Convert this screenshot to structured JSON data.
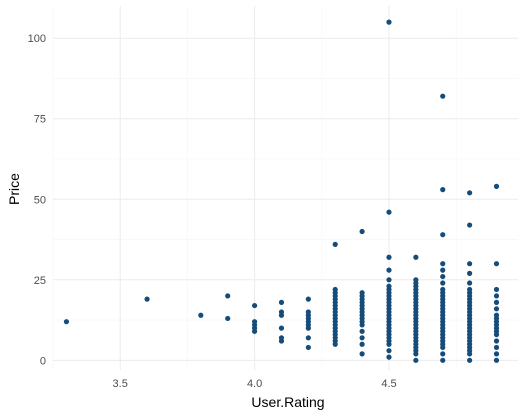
{
  "chart_data": {
    "type": "scatter",
    "title": "",
    "xlabel": "User.Rating",
    "ylabel": "Price",
    "xlim": [
      3.25,
      4.98
    ],
    "ylim": [
      -3,
      110
    ],
    "x_ticks": [
      3.5,
      4.0,
      4.5
    ],
    "x_tick_labels": [
      "3.5",
      "4.0",
      "4.5"
    ],
    "y_ticks": [
      0,
      25,
      50,
      75,
      100
    ],
    "y_tick_labels": [
      "0",
      "25",
      "50",
      "75",
      "100"
    ],
    "grid": true,
    "legend": "none",
    "point_color": "#154c79",
    "points": [
      [
        3.3,
        12
      ],
      [
        3.6,
        19
      ],
      [
        3.8,
        14
      ],
      [
        3.9,
        13
      ],
      [
        3.9,
        20
      ],
      [
        4.0,
        9
      ],
      [
        4.0,
        10
      ],
      [
        4.0,
        11
      ],
      [
        4.0,
        12
      ],
      [
        4.0,
        17
      ],
      [
        4.1,
        6
      ],
      [
        4.1,
        7
      ],
      [
        4.1,
        10
      ],
      [
        4.1,
        14
      ],
      [
        4.1,
        15
      ],
      [
        4.1,
        18
      ],
      [
        4.2,
        4
      ],
      [
        4.2,
        7
      ],
      [
        4.2,
        10
      ],
      [
        4.2,
        11
      ],
      [
        4.2,
        12
      ],
      [
        4.2,
        13
      ],
      [
        4.2,
        14
      ],
      [
        4.2,
        15
      ],
      [
        4.2,
        19
      ],
      [
        4.3,
        5
      ],
      [
        4.3,
        6
      ],
      [
        4.3,
        7
      ],
      [
        4.3,
        8
      ],
      [
        4.3,
        9
      ],
      [
        4.3,
        10
      ],
      [
        4.3,
        11
      ],
      [
        4.3,
        12
      ],
      [
        4.3,
        13
      ],
      [
        4.3,
        14
      ],
      [
        4.3,
        15
      ],
      [
        4.3,
        16
      ],
      [
        4.3,
        17
      ],
      [
        4.3,
        18
      ],
      [
        4.3,
        19
      ],
      [
        4.3,
        20
      ],
      [
        4.3,
        21
      ],
      [
        4.3,
        22
      ],
      [
        4.3,
        36
      ],
      [
        4.4,
        2
      ],
      [
        4.4,
        5
      ],
      [
        4.4,
        7
      ],
      [
        4.4,
        9
      ],
      [
        4.4,
        11
      ],
      [
        4.4,
        12
      ],
      [
        4.4,
        13
      ],
      [
        4.4,
        14
      ],
      [
        4.4,
        15
      ],
      [
        4.4,
        16
      ],
      [
        4.4,
        17
      ],
      [
        4.4,
        18
      ],
      [
        4.4,
        19
      ],
      [
        4.4,
        20
      ],
      [
        4.4,
        21
      ],
      [
        4.4,
        40
      ],
      [
        4.5,
        1
      ],
      [
        4.5,
        3
      ],
      [
        4.5,
        5
      ],
      [
        4.5,
        6
      ],
      [
        4.5,
        7
      ],
      [
        4.5,
        8
      ],
      [
        4.5,
        9
      ],
      [
        4.5,
        10
      ],
      [
        4.5,
        11
      ],
      [
        4.5,
        12
      ],
      [
        4.5,
        13
      ],
      [
        4.5,
        14
      ],
      [
        4.5,
        15
      ],
      [
        4.5,
        16
      ],
      [
        4.5,
        17
      ],
      [
        4.5,
        18
      ],
      [
        4.5,
        19
      ],
      [
        4.5,
        20
      ],
      [
        4.5,
        21
      ],
      [
        4.5,
        22
      ],
      [
        4.5,
        23
      ],
      [
        4.5,
        25
      ],
      [
        4.5,
        28
      ],
      [
        4.5,
        32
      ],
      [
        4.5,
        46
      ],
      [
        4.5,
        105
      ],
      [
        4.6,
        0
      ],
      [
        4.6,
        2
      ],
      [
        4.6,
        3
      ],
      [
        4.6,
        4
      ],
      [
        4.6,
        5
      ],
      [
        4.6,
        6
      ],
      [
        4.6,
        7
      ],
      [
        4.6,
        8
      ],
      [
        4.6,
        9
      ],
      [
        4.6,
        10
      ],
      [
        4.6,
        11
      ],
      [
        4.6,
        12
      ],
      [
        4.6,
        13
      ],
      [
        4.6,
        14
      ],
      [
        4.6,
        15
      ],
      [
        4.6,
        16
      ],
      [
        4.6,
        17
      ],
      [
        4.6,
        18
      ],
      [
        4.6,
        19
      ],
      [
        4.6,
        20
      ],
      [
        4.6,
        21
      ],
      [
        4.6,
        22
      ],
      [
        4.6,
        23
      ],
      [
        4.6,
        24
      ],
      [
        4.6,
        25
      ],
      [
        4.6,
        32
      ],
      [
        4.7,
        0
      ],
      [
        4.7,
        2
      ],
      [
        4.7,
        4
      ],
      [
        4.7,
        5
      ],
      [
        4.7,
        6
      ],
      [
        4.7,
        7
      ],
      [
        4.7,
        8
      ],
      [
        4.7,
        9
      ],
      [
        4.7,
        10
      ],
      [
        4.7,
        11
      ],
      [
        4.7,
        12
      ],
      [
        4.7,
        13
      ],
      [
        4.7,
        14
      ],
      [
        4.7,
        15
      ],
      [
        4.7,
        16
      ],
      [
        4.7,
        17
      ],
      [
        4.7,
        18
      ],
      [
        4.7,
        19
      ],
      [
        4.7,
        20
      ],
      [
        4.7,
        21
      ],
      [
        4.7,
        22
      ],
      [
        4.7,
        24
      ],
      [
        4.7,
        26
      ],
      [
        4.7,
        28
      ],
      [
        4.7,
        30
      ],
      [
        4.7,
        39
      ],
      [
        4.7,
        53
      ],
      [
        4.7,
        82
      ],
      [
        4.8,
        0
      ],
      [
        4.8,
        2
      ],
      [
        4.8,
        3
      ],
      [
        4.8,
        4
      ],
      [
        4.8,
        5
      ],
      [
        4.8,
        6
      ],
      [
        4.8,
        7
      ],
      [
        4.8,
        8
      ],
      [
        4.8,
        9
      ],
      [
        4.8,
        10
      ],
      [
        4.8,
        11
      ],
      [
        4.8,
        12
      ],
      [
        4.8,
        13
      ],
      [
        4.8,
        14
      ],
      [
        4.8,
        15
      ],
      [
        4.8,
        16
      ],
      [
        4.8,
        17
      ],
      [
        4.8,
        18
      ],
      [
        4.8,
        19
      ],
      [
        4.8,
        20
      ],
      [
        4.8,
        21
      ],
      [
        4.8,
        22
      ],
      [
        4.8,
        24
      ],
      [
        4.8,
        27
      ],
      [
        4.8,
        30
      ],
      [
        4.8,
        42
      ],
      [
        4.8,
        52
      ],
      [
        4.9,
        0
      ],
      [
        4.9,
        2
      ],
      [
        4.9,
        4
      ],
      [
        4.9,
        6
      ],
      [
        4.9,
        8
      ],
      [
        4.9,
        9
      ],
      [
        4.9,
        10
      ],
      [
        4.9,
        11
      ],
      [
        4.9,
        12
      ],
      [
        4.9,
        13
      ],
      [
        4.9,
        14
      ],
      [
        4.9,
        16
      ],
      [
        4.9,
        18
      ],
      [
        4.9,
        20
      ],
      [
        4.9,
        22
      ],
      [
        4.9,
        30
      ],
      [
        4.9,
        54
      ]
    ]
  }
}
